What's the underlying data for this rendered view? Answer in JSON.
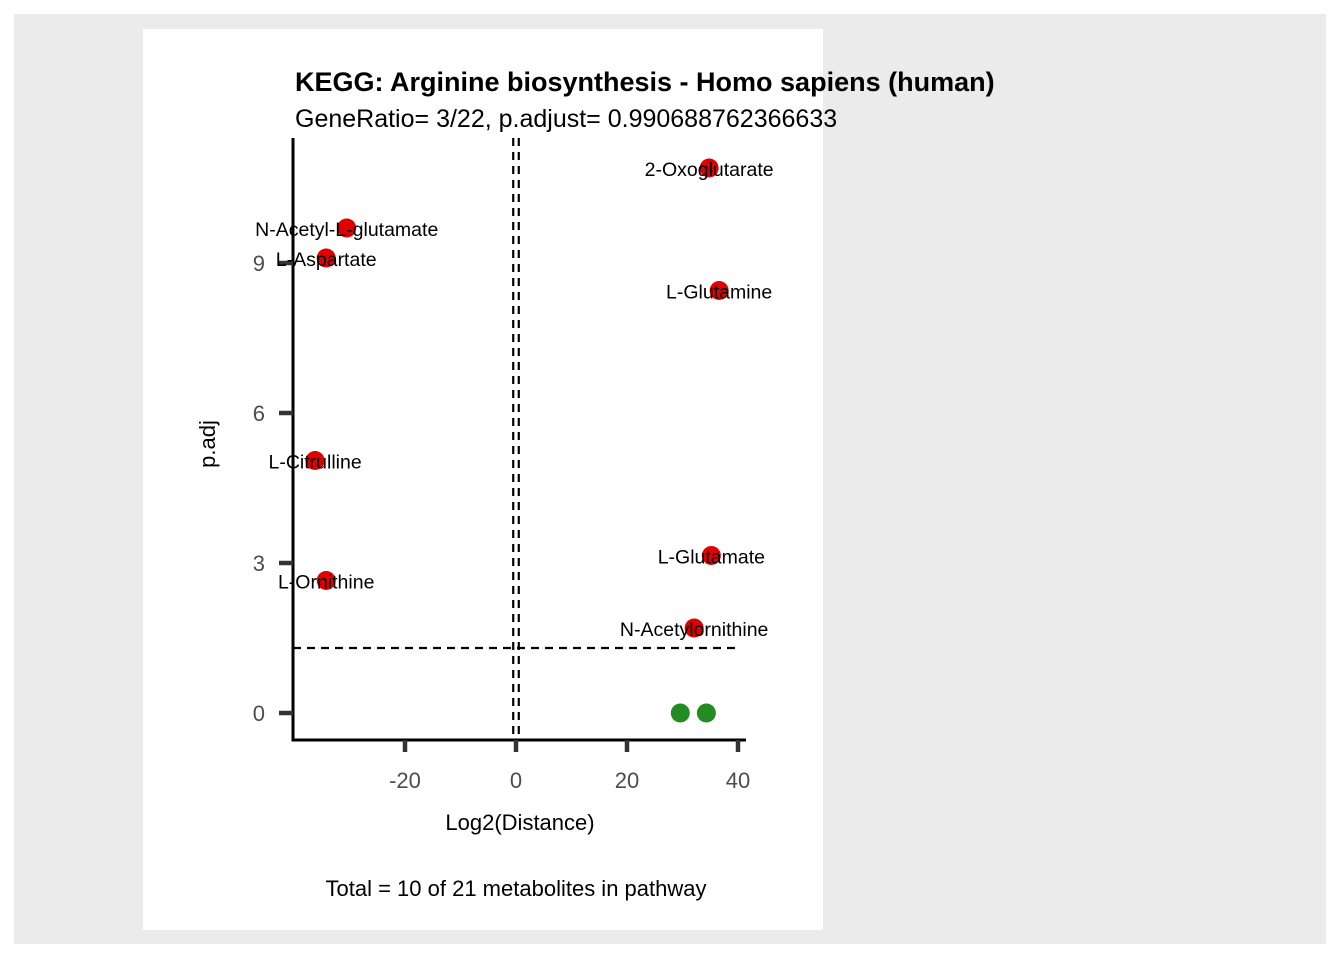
{
  "chart_data": {
    "type": "scatter",
    "title": "KEGG: Arginine biosynthesis - Homo sapiens (human)",
    "subtitle": "GeneRatio= 3/22, p.adjust= 0.990688762366633",
    "xlabel": "Log2(Distance)",
    "ylabel": "p.adj",
    "caption": "Total = 10 of 21 metabolites in pathway",
    "xlim": [
      -40,
      41
    ],
    "ylim": [
      0,
      11.5
    ],
    "x_ticks": [
      -20,
      0,
      20,
      40
    ],
    "y_ticks": [
      0,
      3,
      6,
      9
    ],
    "grid": false,
    "legend": "none",
    "reference_lines": {
      "vertical": [
        -0.5,
        0.5
      ],
      "horizontal": 1.3
    },
    "colors": {
      "significant": "#e00000",
      "not_significant": "#228b22",
      "background": "#ebebeb",
      "panel": "#ffffff"
    },
    "points": [
      {
        "label": "2-Oxoglutarate",
        "x": 34.8,
        "y": 10.9,
        "group": "significant"
      },
      {
        "label": "N-Acetyl-L-glutamate",
        "x": -30.5,
        "y": 9.7,
        "group": "significant"
      },
      {
        "label": "L-Aspartate",
        "x": -34.2,
        "y": 9.1,
        "group": "significant"
      },
      {
        "label": "L-Glutamine",
        "x": 36.6,
        "y": 8.45,
        "group": "significant"
      },
      {
        "label": "L-Citrulline",
        "x": -36.2,
        "y": 5.05,
        "group": "significant"
      },
      {
        "label": "L-Glutamate",
        "x": 35.2,
        "y": 3.15,
        "group": "significant"
      },
      {
        "label": "L-Ornithine",
        "x": -34.2,
        "y": 2.65,
        "group": "significant"
      },
      {
        "label": "N-Acetylornithine",
        "x": 32.1,
        "y": 1.7,
        "group": "significant"
      },
      {
        "label": "",
        "x": 29.6,
        "y": 0.0,
        "group": "not_significant"
      },
      {
        "label": "",
        "x": 34.3,
        "y": 0.0,
        "group": "not_significant"
      }
    ]
  }
}
